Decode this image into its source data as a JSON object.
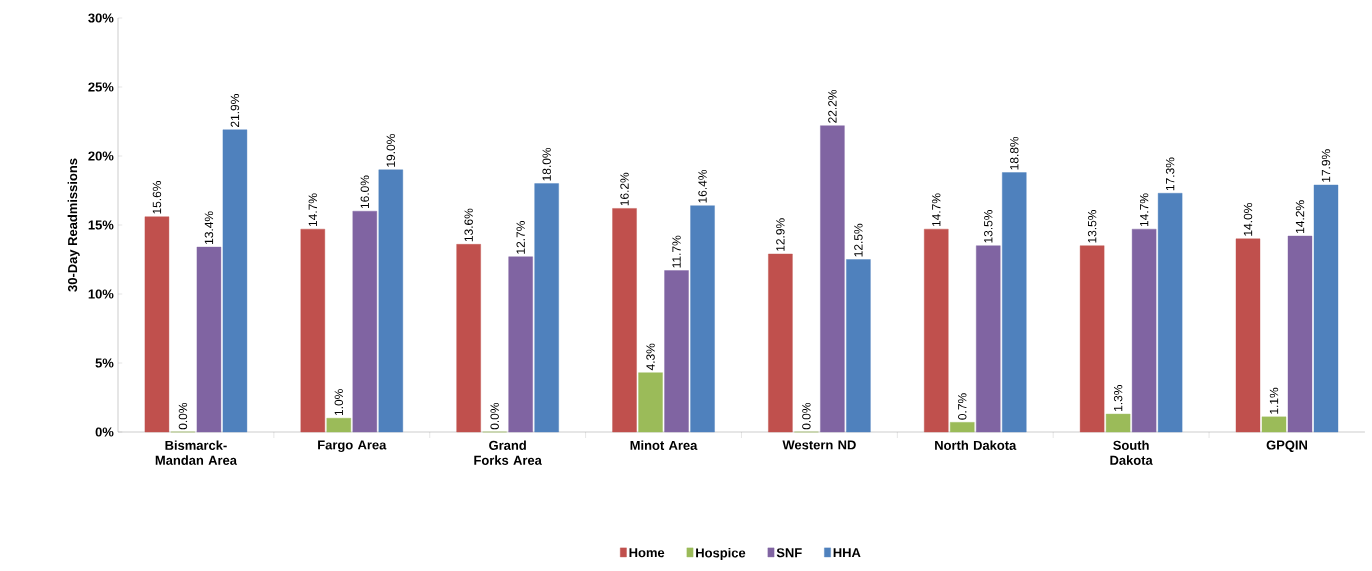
{
  "chart_data": {
    "type": "bar",
    "ylabel": "30-Day Readmissions",
    "categories": [
      "Bismarck-Mandan Area",
      "Fargo Area",
      "Grand Forks Area",
      "Minot Area",
      "Western ND",
      "North Dakota",
      "South Dakota",
      "GPQIN"
    ],
    "series": [
      {
        "name": "Home",
        "color": "#c0504d",
        "values": [
          15.6,
          14.7,
          13.6,
          16.2,
          12.9,
          14.7,
          13.5,
          14.0
        ],
        "value_labels": [
          "15.6%",
          "14.7%",
          "13.6%",
          "16.2%",
          "12.9%",
          "14.7%",
          "13.5%",
          "14.0%"
        ]
      },
      {
        "name": "Hospice",
        "color": "#9bbb59",
        "values": [
          0.0,
          1.0,
          0.0,
          4.3,
          0.0,
          0.7,
          1.3,
          1.1
        ],
        "value_labels": [
          "0.0%",
          "1.0%",
          "0.0%",
          "4.3%",
          "0.0%",
          "0.7%",
          "1.3%",
          "1.1%"
        ]
      },
      {
        "name": "SNF",
        "color": "#8064a2",
        "values": [
          13.4,
          16.0,
          12.7,
          11.7,
          22.2,
          13.5,
          14.7,
          14.2
        ],
        "value_labels": [
          "13.4%",
          "16.0%",
          "12.7%",
          "11.7%",
          "22.2%",
          "13.5%",
          "14.7%",
          "14.2%"
        ]
      },
      {
        "name": "HHA",
        "color": "#4f81bd",
        "values": [
          21.9,
          19.0,
          18.0,
          16.4,
          12.5,
          18.8,
          17.3,
          17.9
        ],
        "value_labels": [
          "21.9%",
          "19.0%",
          "18.0%",
          "16.4%",
          "12.5%",
          "18.8%",
          "17.3%",
          "17.9%"
        ]
      }
    ],
    "ylim": [
      0,
      30
    ],
    "yticks": [
      {
        "value": 0,
        "label": "0%"
      },
      {
        "value": 5,
        "label": "5%"
      },
      {
        "value": 10,
        "label": "10%"
      },
      {
        "value": 15,
        "label": "15%"
      },
      {
        "value": 20,
        "label": "20%"
      },
      {
        "value": 25,
        "label": "25%"
      },
      {
        "value": 30,
        "label": "30%"
      }
    ],
    "grid": false,
    "legend": "bottom"
  }
}
